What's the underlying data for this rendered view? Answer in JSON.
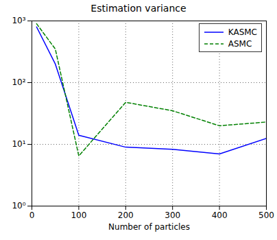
{
  "chart_data": {
    "type": "line",
    "title": "Estimation variance",
    "x_label": "Number of particles",
    "x": [
      10,
      50,
      100,
      200,
      300,
      400,
      500
    ],
    "series": [
      {
        "name": "KASMC",
        "color": "#0000ff",
        "line_style": "solid",
        "values": [
          800,
          200,
          14,
          9,
          8.3,
          7,
          12.5
        ]
      },
      {
        "name": "ASMC",
        "color": "#008000",
        "line_style": "dashed",
        "values": [
          900,
          350,
          6.5,
          48,
          35,
          20,
          23
        ]
      }
    ],
    "xlim": [
      0,
      500
    ],
    "xticks": [
      0,
      100,
      200,
      300,
      400,
      500
    ],
    "ylim": [
      1,
      1000
    ],
    "yticks": [
      {
        "value": 1,
        "label": "10⁰"
      },
      {
        "value": 10,
        "label": "10¹"
      },
      {
        "value": 100,
        "label": "10²"
      },
      {
        "value": 1000,
        "label": "10³"
      }
    ],
    "log": "y",
    "grid": true,
    "legend": "upper right"
  }
}
